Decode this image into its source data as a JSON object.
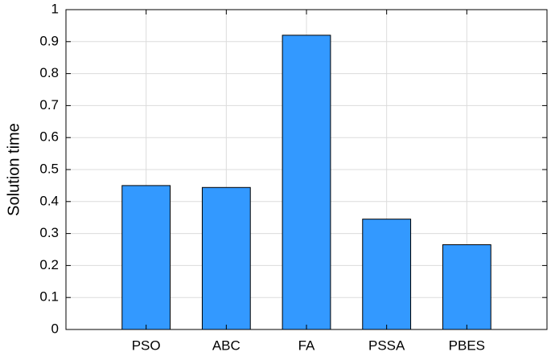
{
  "chart_data": {
    "type": "bar",
    "ylabel": "Solution time",
    "categories": [
      "PSO",
      "ABC",
      "FA",
      "PSSA",
      "PBES"
    ],
    "values": [
      0.45,
      0.444,
      0.92,
      0.345,
      0.265
    ],
    "color": "#3399ff",
    "ylim": [
      0,
      1
    ],
    "yticks": [
      0,
      0.1,
      0.2,
      0.3,
      0.4,
      0.5,
      0.6,
      0.7,
      0.8,
      0.9,
      1
    ],
    "grid": true
  }
}
